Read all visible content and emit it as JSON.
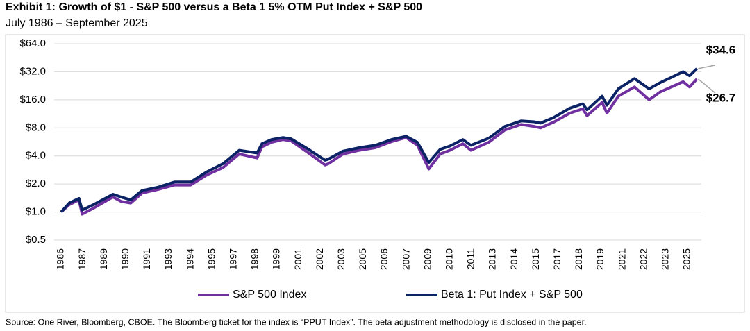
{
  "chart_data": {
    "type": "line",
    "title": "Exhibit 1: Growth of $1 - S&P 500 versus a Beta 1 5% OTM Put Index + S&P 500",
    "subtitle": "July 1986 – September 2025",
    "source": "Source: One River, Bloomberg, CBOE. The Bloomberg ticket for the index is “PPUT Index”. The beta adjustment methodology is disclosed in the paper.",
    "log_scale": true,
    "grid": true,
    "x": [
      1986.5,
      1987.0,
      1987.6,
      1987.8,
      1988.5,
      1989.7,
      1990.2,
      1990.8,
      1991.5,
      1992.5,
      1993.5,
      1994.5,
      1995.5,
      1996.5,
      1997.5,
      1998.6,
      1998.9,
      1999.5,
      2000.2,
      2000.7,
      2001.7,
      2002.8,
      2003.0,
      2003.9,
      2004.9,
      2005.9,
      2006.9,
      2007.8,
      2008.5,
      2009.2,
      2009.9,
      2010.5,
      2011.3,
      2011.8,
      2012.9,
      2013.9,
      2014.9,
      2015.7,
      2016.1,
      2016.9,
      2017.9,
      2018.7,
      2018.97,
      2019.9,
      2020.2,
      2020.9,
      2021.9,
      2022.8,
      2023.5,
      2024.3,
      2024.9,
      2025.3,
      2025.75
    ],
    "series": [
      {
        "name": "S&P 500 Index",
        "color": "#7030a0",
        "values": [
          1.0,
          1.2,
          1.35,
          0.95,
          1.1,
          1.45,
          1.3,
          1.25,
          1.6,
          1.75,
          1.95,
          1.95,
          2.5,
          3.0,
          4.2,
          3.8,
          5.0,
          5.6,
          6.0,
          5.8,
          4.4,
          3.2,
          3.3,
          4.2,
          4.6,
          4.9,
          5.7,
          6.3,
          5.2,
          2.9,
          4.2,
          4.6,
          5.4,
          4.6,
          5.6,
          7.6,
          8.7,
          8.3,
          8.0,
          9.2,
          11.5,
          12.8,
          10.8,
          15,
          11.5,
          17.5,
          22,
          16,
          19.5,
          22.5,
          25,
          22,
          26.7
        ]
      },
      {
        "name": "Beta 1: Put Index + S&P 500",
        "color": "#0b2265",
        "values": [
          1.0,
          1.25,
          1.4,
          1.05,
          1.2,
          1.55,
          1.45,
          1.35,
          1.7,
          1.85,
          2.1,
          2.1,
          2.7,
          3.3,
          4.6,
          4.3,
          5.4,
          6.0,
          6.3,
          6.1,
          4.8,
          3.6,
          3.7,
          4.5,
          4.9,
          5.2,
          6.0,
          6.5,
          5.6,
          3.4,
          4.7,
          5.1,
          6.0,
          5.2,
          6.2,
          8.3,
          9.5,
          9.3,
          9.0,
          10.3,
          13,
          14.5,
          12.5,
          17.5,
          14,
          21,
          27,
          21,
          24.5,
          28.5,
          32,
          29,
          34.6
        ]
      }
    ],
    "annotations": [
      {
        "label": "$34.6",
        "value": 34.6,
        "color": "#000000"
      },
      {
        "label": "$26.7",
        "value": 26.7,
        "color": "#7030a0"
      }
    ],
    "xlim": [
      1986.5,
      2025.75
    ],
    "xticks": [
      {
        "value": 1986.5,
        "label": "1986"
      },
      {
        "value": 1987.833,
        "label": "1987"
      },
      {
        "value": 1989.167,
        "label": "1989"
      },
      {
        "value": 1990.5,
        "label": "1990"
      },
      {
        "value": 1991.833,
        "label": "1991"
      },
      {
        "value": 1993.167,
        "label": "1993"
      },
      {
        "value": 1994.5,
        "label": "1994"
      },
      {
        "value": 1995.833,
        "label": "1995"
      },
      {
        "value": 1997.167,
        "label": "1997"
      },
      {
        "value": 1998.5,
        "label": "1998"
      },
      {
        "value": 1999.833,
        "label": "1999"
      },
      {
        "value": 2001.167,
        "label": "2001"
      },
      {
        "value": 2002.5,
        "label": "2002"
      },
      {
        "value": 2003.833,
        "label": "2003"
      },
      {
        "value": 2005.167,
        "label": "2005"
      },
      {
        "value": 2006.5,
        "label": "2006"
      },
      {
        "value": 2007.833,
        "label": "2007"
      },
      {
        "value": 2009.167,
        "label": "2009"
      },
      {
        "value": 2010.5,
        "label": "2010"
      },
      {
        "value": 2011.833,
        "label": "2011"
      },
      {
        "value": 2013.167,
        "label": "2013"
      },
      {
        "value": 2014.5,
        "label": "2014"
      },
      {
        "value": 2015.833,
        "label": "2015"
      },
      {
        "value": 2017.167,
        "label": "2017"
      },
      {
        "value": 2018.5,
        "label": "2018"
      },
      {
        "value": 2019.833,
        "label": "2019"
      },
      {
        "value": 2021.167,
        "label": "2021"
      },
      {
        "value": 2022.5,
        "label": "2022"
      },
      {
        "value": 2023.833,
        "label": "2023"
      },
      {
        "value": 2025.167,
        "label": "2025"
      }
    ],
    "ylim": [
      0.5,
      64
    ],
    "yticks": [
      {
        "value": 0.5,
        "label": "$0.5"
      },
      {
        "value": 1,
        "label": "$1.0"
      },
      {
        "value": 2,
        "label": "$2.0"
      },
      {
        "value": 4,
        "label": "$4.0"
      },
      {
        "value": 8,
        "label": "$8.0"
      },
      {
        "value": 16,
        "label": "$16.0"
      },
      {
        "value": 32,
        "label": "$32.0"
      },
      {
        "value": 64,
        "label": "$64.0"
      }
    ]
  }
}
